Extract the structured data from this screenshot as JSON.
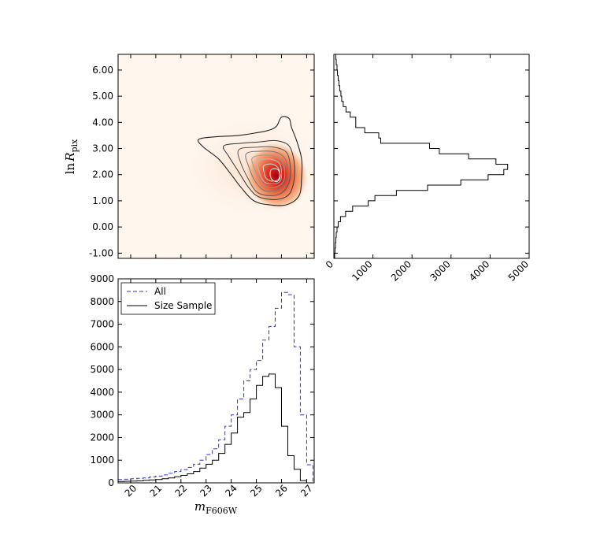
{
  "chart_data": [
    {
      "id": "scatter_density",
      "type": "heatmap",
      "title": "",
      "xlabel": "",
      "ylabel_main": "ln",
      "ylabel_var": "R",
      "ylabel_sub": "pix",
      "x_tick_labels_shown": false,
      "xlim": [
        19.5,
        27.3
      ],
      "ylim": [
        -1.2,
        6.6
      ],
      "yticks": [
        -1.0,
        0.0,
        1.0,
        2.0,
        3.0,
        4.0,
        5.0,
        6.0
      ],
      "ytick_labels": [
        "-1.00",
        "0.00",
        "1.00",
        "2.00",
        "3.00",
        "4.00",
        "5.00",
        "6.00"
      ],
      "density_peak": {
        "x": 25.8,
        "y": 1.95
      },
      "contours": [
        {
          "color": "#222222",
          "points": [
            [
              22.7,
              3.35
            ],
            [
              23.4,
              3.45
            ],
            [
              24.3,
              3.5
            ],
            [
              25.0,
              3.6
            ],
            [
              25.5,
              3.7
            ],
            [
              25.8,
              3.85
            ],
            [
              26.0,
              4.2
            ],
            [
              26.3,
              4.15
            ],
            [
              26.4,
              3.8
            ],
            [
              26.6,
              3.3
            ],
            [
              26.8,
              2.6
            ],
            [
              26.8,
              1.9
            ],
            [
              26.7,
              1.2
            ],
            [
              26.2,
              0.85
            ],
            [
              25.5,
              0.85
            ],
            [
              24.9,
              1.0
            ],
            [
              24.4,
              1.5
            ],
            [
              24.0,
              2.0
            ],
            [
              23.5,
              2.6
            ],
            [
              22.9,
              3.05
            ]
          ]
        },
        {
          "color": "#333333",
          "points": [
            [
              23.7,
              3.1
            ],
            [
              24.4,
              3.2
            ],
            [
              25.1,
              3.25
            ],
            [
              25.8,
              3.3
            ],
            [
              26.3,
              3.1
            ],
            [
              26.5,
              2.5
            ],
            [
              26.5,
              1.8
            ],
            [
              26.3,
              1.25
            ],
            [
              25.8,
              1.05
            ],
            [
              25.1,
              1.15
            ],
            [
              24.7,
              1.5
            ],
            [
              24.3,
              2.1
            ],
            [
              23.9,
              2.7
            ]
          ]
        },
        {
          "color": "#555555",
          "points": [
            [
              24.3,
              2.95
            ],
            [
              25.0,
              3.05
            ],
            [
              25.7,
              3.05
            ],
            [
              26.2,
              2.85
            ],
            [
              26.35,
              2.3
            ],
            [
              26.3,
              1.7
            ],
            [
              26.0,
              1.3
            ],
            [
              25.5,
              1.2
            ],
            [
              25.0,
              1.35
            ],
            [
              24.7,
              1.8
            ],
            [
              24.4,
              2.4
            ]
          ]
        },
        {
          "color": "#777777",
          "points": [
            [
              24.6,
              2.8
            ],
            [
              25.2,
              2.9
            ],
            [
              25.8,
              2.85
            ],
            [
              26.15,
              2.6
            ],
            [
              26.25,
              2.1
            ],
            [
              26.15,
              1.65
            ],
            [
              25.8,
              1.4
            ],
            [
              25.3,
              1.4
            ],
            [
              24.95,
              1.75
            ],
            [
              24.7,
              2.3
            ]
          ]
        },
        {
          "color": "#9a9a9a",
          "points": [
            [
              24.85,
              2.65
            ],
            [
              25.4,
              2.75
            ],
            [
              25.9,
              2.65
            ],
            [
              26.1,
              2.3
            ],
            [
              26.1,
              1.8
            ],
            [
              25.85,
              1.55
            ],
            [
              25.4,
              1.55
            ],
            [
              25.1,
              1.85
            ],
            [
              24.9,
              2.3
            ]
          ]
        },
        {
          "color": "#bbbbbb",
          "points": [
            [
              25.05,
              2.5
            ],
            [
              25.5,
              2.6
            ],
            [
              25.9,
              2.45
            ],
            [
              26.0,
              2.1
            ],
            [
              25.95,
              1.75
            ],
            [
              25.7,
              1.65
            ],
            [
              25.35,
              1.7
            ],
            [
              25.15,
              2.0
            ]
          ]
        },
        {
          "color": "#d8d8d8",
          "points": [
            [
              25.3,
              2.35
            ],
            [
              25.65,
              2.4
            ],
            [
              25.9,
              2.2
            ],
            [
              25.9,
              1.85
            ],
            [
              25.65,
              1.75
            ],
            [
              25.4,
              1.85
            ],
            [
              25.3,
              2.1
            ]
          ]
        },
        {
          "color": "#ffffff",
          "points": [
            [
              25.6,
              2.2
            ],
            [
              25.85,
              2.2
            ],
            [
              25.95,
              1.95
            ],
            [
              25.85,
              1.75
            ],
            [
              25.65,
              1.78
            ],
            [
              25.55,
              1.98
            ]
          ]
        }
      ]
    },
    {
      "id": "size_histogram",
      "type": "bar",
      "orientation": "horizontal",
      "title": "",
      "xlabel": "",
      "ylabel": "",
      "xlim": [
        0,
        5000
      ],
      "xticks": [
        0,
        1000,
        2000,
        3000,
        4000,
        5000
      ],
      "xtick_labels": [
        "0",
        "1000",
        "2000",
        "3000",
        "4000",
        "5000"
      ],
      "ylim": [
        -1.2,
        6.6
      ],
      "bins": [
        {
          "y0": -1.2,
          "y1": -1.0,
          "count": 20
        },
        {
          "y0": -1.0,
          "y1": -0.8,
          "count": 30
        },
        {
          "y0": -0.8,
          "y1": -0.6,
          "count": 40
        },
        {
          "y0": -0.6,
          "y1": -0.4,
          "count": 50
        },
        {
          "y0": -0.4,
          "y1": -0.2,
          "count": 60
        },
        {
          "y0": -0.2,
          "y1": 0.0,
          "count": 80
        },
        {
          "y0": 0.0,
          "y1": 0.2,
          "count": 110
        },
        {
          "y0": 0.2,
          "y1": 0.4,
          "count": 170
        },
        {
          "y0": 0.4,
          "y1": 0.6,
          "count": 300
        },
        {
          "y0": 0.6,
          "y1": 0.8,
          "count": 480
        },
        {
          "y0": 0.8,
          "y1": 1.0,
          "count": 880
        },
        {
          "y0": 1.0,
          "y1": 1.2,
          "count": 1050
        },
        {
          "y0": 1.2,
          "y1": 1.4,
          "count": 1600
        },
        {
          "y0": 1.4,
          "y1": 1.6,
          "count": 2400
        },
        {
          "y0": 1.6,
          "y1": 1.8,
          "count": 3250
        },
        {
          "y0": 1.8,
          "y1": 2.0,
          "count": 3950
        },
        {
          "y0": 2.0,
          "y1": 2.2,
          "count": 4350
        },
        {
          "y0": 2.2,
          "y1": 2.4,
          "count": 4450
        },
        {
          "y0": 2.4,
          "y1": 2.6,
          "count": 4150
        },
        {
          "y0": 2.6,
          "y1": 2.8,
          "count": 3450
        },
        {
          "y0": 2.8,
          "y1": 3.0,
          "count": 2700
        },
        {
          "y0": 3.0,
          "y1": 3.2,
          "count": 2450
        },
        {
          "y0": 3.2,
          "y1": 3.4,
          "count": 1200
        },
        {
          "y0": 3.4,
          "y1": 3.6,
          "count": 1150
        },
        {
          "y0": 3.6,
          "y1": 3.8,
          "count": 790
        },
        {
          "y0": 3.8,
          "y1": 4.0,
          "count": 560
        },
        {
          "y0": 4.0,
          "y1": 4.2,
          "count": 560
        },
        {
          "y0": 4.2,
          "y1": 4.4,
          "count": 420
        },
        {
          "y0": 4.4,
          "y1": 4.6,
          "count": 310
        },
        {
          "y0": 4.6,
          "y1": 4.8,
          "count": 240
        },
        {
          "y0": 4.8,
          "y1": 5.0,
          "count": 200
        },
        {
          "y0": 5.0,
          "y1": 5.2,
          "count": 180
        },
        {
          "y0": 5.2,
          "y1": 5.4,
          "count": 150
        },
        {
          "y0": 5.4,
          "y1": 5.6,
          "count": 130
        },
        {
          "y0": 5.6,
          "y1": 5.8,
          "count": 110
        },
        {
          "y0": 5.8,
          "y1": 6.0,
          "count": 90
        },
        {
          "y0": 6.0,
          "y1": 6.2,
          "count": 80
        },
        {
          "y0": 6.2,
          "y1": 6.4,
          "count": 60
        },
        {
          "y0": 6.4,
          "y1": 6.6,
          "count": 50
        }
      ]
    },
    {
      "id": "magnitude_histogram",
      "type": "bar",
      "title": "",
      "xlabel_var": "m",
      "xlabel_sub": "F606W",
      "ylabel": "",
      "xlim": [
        19.5,
        27.3
      ],
      "xticks": [
        20,
        21,
        22,
        23,
        24,
        25,
        26,
        27
      ],
      "xtick_labels": [
        "20",
        "21",
        "22",
        "23",
        "24",
        "25",
        "26",
        "27"
      ],
      "ylim": [
        0,
        9000
      ],
      "yticks": [
        0,
        1000,
        2000,
        3000,
        4000,
        5000,
        6000,
        7000,
        8000,
        9000
      ],
      "ytick_labels": [
        "0",
        "1000",
        "2000",
        "3000",
        "4000",
        "5000",
        "6000",
        "7000",
        "8000",
        "9000"
      ],
      "legend": {
        "position": "top-left"
      },
      "bin_edges": [
        19.5,
        19.75,
        20.0,
        20.25,
        20.5,
        20.75,
        21.0,
        21.25,
        21.5,
        21.75,
        22.0,
        22.25,
        22.5,
        22.75,
        23.0,
        23.25,
        23.5,
        23.75,
        24.0,
        24.25,
        24.5,
        24.75,
        25.0,
        25.25,
        25.5,
        25.75,
        26.0,
        26.25,
        26.5,
        26.75,
        27.0,
        27.25
      ],
      "series": [
        {
          "name": "All",
          "color": "#3333cc",
          "style": "dashed",
          "values": [
            150,
            160,
            180,
            200,
            220,
            260,
            300,
            350,
            420,
            500,
            580,
            680,
            820,
            1000,
            1250,
            1500,
            1900,
            2500,
            3000,
            3700,
            4500,
            5000,
            5400,
            6300,
            6900,
            7700,
            8400,
            8300,
            6000,
            3000,
            800
          ]
        },
        {
          "name": "Size Sample",
          "color": "#000000",
          "style": "solid",
          "values": [
            60,
            70,
            80,
            90,
            110,
            130,
            150,
            180,
            220,
            270,
            330,
            400,
            500,
            650,
            820,
            1000,
            1300,
            1700,
            2200,
            2900,
            3100,
            3700,
            4300,
            4700,
            4800,
            4200,
            2500,
            1200,
            600,
            100,
            0
          ]
        }
      ]
    }
  ]
}
